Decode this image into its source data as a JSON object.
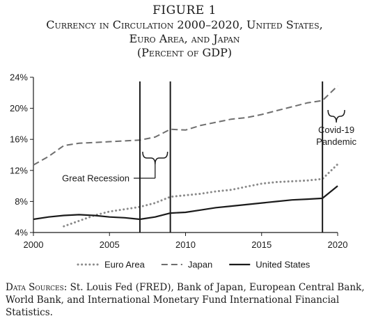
{
  "figure": {
    "number": "FIGURE 1",
    "title_lines": [
      "Currency in Circulation 2000–2020, United States,",
      "Euro Area, and Japan",
      "(Percent of GDP)"
    ]
  },
  "chart_data": {
    "type": "line",
    "title": "Currency in Circulation 2000–2020, United States, Euro Area, and Japan (Percent of GDP)",
    "xlabel": "",
    "ylabel": "",
    "xlim": [
      2000,
      2020
    ],
    "ylim": [
      4,
      24
    ],
    "x_ticks": [
      2000,
      2005,
      2010,
      2015,
      2020
    ],
    "x_tick_labels": [
      "2000",
      "2005",
      "2010",
      "2015",
      "2020"
    ],
    "y_ticks": [
      4,
      8,
      12,
      16,
      20,
      24
    ],
    "y_tick_labels": [
      "4%",
      "8%",
      "12%",
      "16%",
      "20%",
      "24%"
    ],
    "grid": false,
    "legend_position": "bottom",
    "series": [
      {
        "name": "Euro Area",
        "style": "dotted",
        "color": "#8a8a8a",
        "x": [
          2002,
          2003,
          2004,
          2005,
          2006,
          2007,
          2008,
          2009,
          2010,
          2011,
          2012,
          2013,
          2014,
          2015,
          2016,
          2017,
          2018,
          2019,
          2020
        ],
        "values": [
          4.8,
          5.5,
          6.2,
          6.7,
          7.0,
          7.3,
          7.8,
          8.6,
          8.8,
          9.0,
          9.3,
          9.5,
          9.9,
          10.3,
          10.5,
          10.6,
          10.7,
          10.9,
          12.8
        ]
      },
      {
        "name": "Japan",
        "style": "dashed",
        "color": "#6e6e6e",
        "x": [
          2000,
          2001,
          2002,
          2003,
          2004,
          2005,
          2006,
          2007,
          2008,
          2009,
          2010,
          2011,
          2012,
          2013,
          2014,
          2015,
          2016,
          2017,
          2018,
          2019,
          2020
        ],
        "values": [
          12.7,
          13.8,
          15.2,
          15.5,
          15.6,
          15.7,
          15.8,
          15.9,
          16.3,
          17.3,
          17.2,
          17.8,
          18.2,
          18.6,
          18.8,
          19.2,
          19.7,
          20.2,
          20.7,
          21.0,
          22.9
        ]
      },
      {
        "name": "United States",
        "style": "solid",
        "color": "#1a1a1a",
        "x": [
          2000,
          2001,
          2002,
          2003,
          2004,
          2005,
          2006,
          2007,
          2008,
          2009,
          2010,
          2011,
          2012,
          2013,
          2014,
          2015,
          2016,
          2017,
          2018,
          2019,
          2020
        ],
        "values": [
          5.7,
          6.0,
          6.2,
          6.3,
          6.2,
          6.0,
          5.9,
          5.7,
          6.0,
          6.5,
          6.6,
          6.9,
          7.2,
          7.4,
          7.6,
          7.8,
          8.0,
          8.2,
          8.3,
          8.4,
          10.0
        ]
      }
    ],
    "vertical_lines": [
      2007,
      2009,
      2019
    ],
    "annotations": [
      {
        "label_lines": [
          "Great Recession"
        ],
        "x_range": [
          2007,
          2009
        ]
      },
      {
        "label_lines": [
          "Covid-19",
          "Pandemic"
        ],
        "x_range": [
          2019,
          2020
        ]
      }
    ]
  },
  "sources": {
    "lead": "Data Sources:",
    "text": " St. Louis Fed (FRED), Bank of Japan, European Central Bank, World Bank, and International Monetary Fund International Financial Statistics."
  }
}
